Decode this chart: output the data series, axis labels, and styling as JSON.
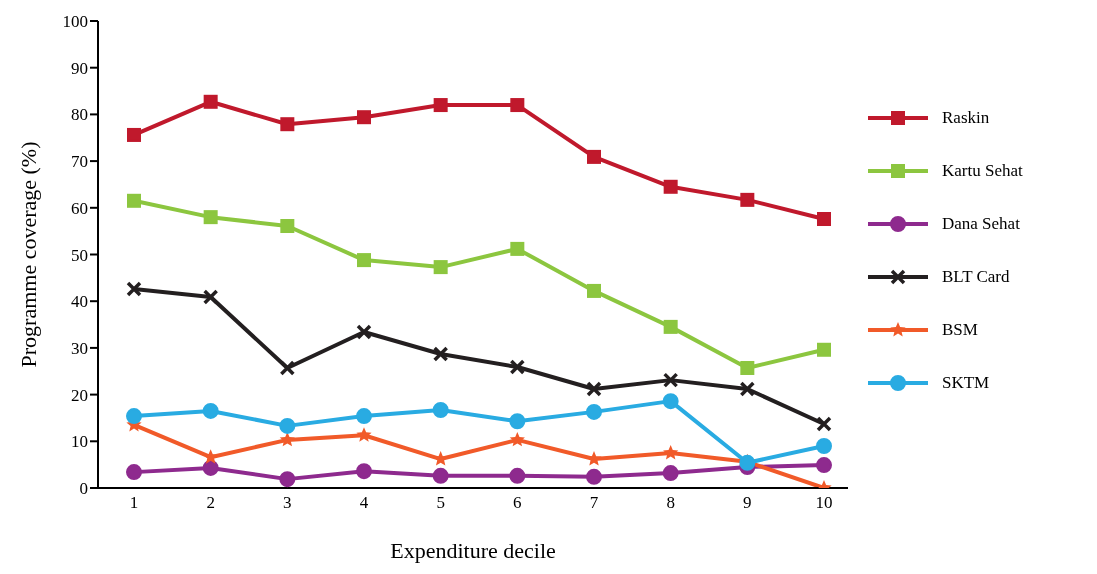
{
  "chart_data": {
    "type": "line",
    "xlabel": "Expenditure decile",
    "ylabel": "Programme coverage (%)",
    "categories": [
      "1",
      "2",
      "3",
      "4",
      "5",
      "6",
      "7",
      "8",
      "9",
      "10"
    ],
    "ylim": [
      0,
      100
    ],
    "yticks": [
      0,
      10,
      20,
      30,
      40,
      50,
      60,
      70,
      80,
      90,
      100
    ],
    "legend": "right",
    "series": [
      {
        "name": "Raskin",
        "color": "#c0192c",
        "marker": "square",
        "values": [
          75.6,
          82.7,
          77.9,
          79.4,
          82.0,
          82.0,
          70.9,
          64.5,
          61.7,
          57.6
        ]
      },
      {
        "name": "Kartu Sehat",
        "color": "#8cc63f",
        "marker": "square",
        "values": [
          61.5,
          58.0,
          56.1,
          48.8,
          47.3,
          51.2,
          42.2,
          34.5,
          25.7,
          29.6
        ]
      },
      {
        "name": "Dana Sehat",
        "color": "#8e2a8e",
        "marker": "circle",
        "values": [
          3.4,
          4.3,
          1.9,
          3.6,
          2.6,
          2.6,
          2.4,
          3.2,
          4.5,
          4.9
        ]
      },
      {
        "name": "BLT Card",
        "color": "#231f20",
        "marker": "cross",
        "values": [
          42.6,
          40.9,
          25.7,
          33.4,
          28.7,
          25.9,
          21.2,
          23.1,
          21.2,
          13.7
        ]
      },
      {
        "name": "BSM",
        "color": "#f15a29",
        "marker": "star",
        "values": [
          13.5,
          6.6,
          10.3,
          11.3,
          6.2,
          10.3,
          6.2,
          7.5,
          5.6,
          0
        ]
      },
      {
        "name": "SKTM",
        "color": "#29abe2",
        "marker": "circle",
        "values": [
          15.4,
          16.5,
          13.3,
          15.4,
          16.7,
          14.3,
          16.3,
          18.6,
          5.4,
          9.0
        ]
      }
    ]
  }
}
